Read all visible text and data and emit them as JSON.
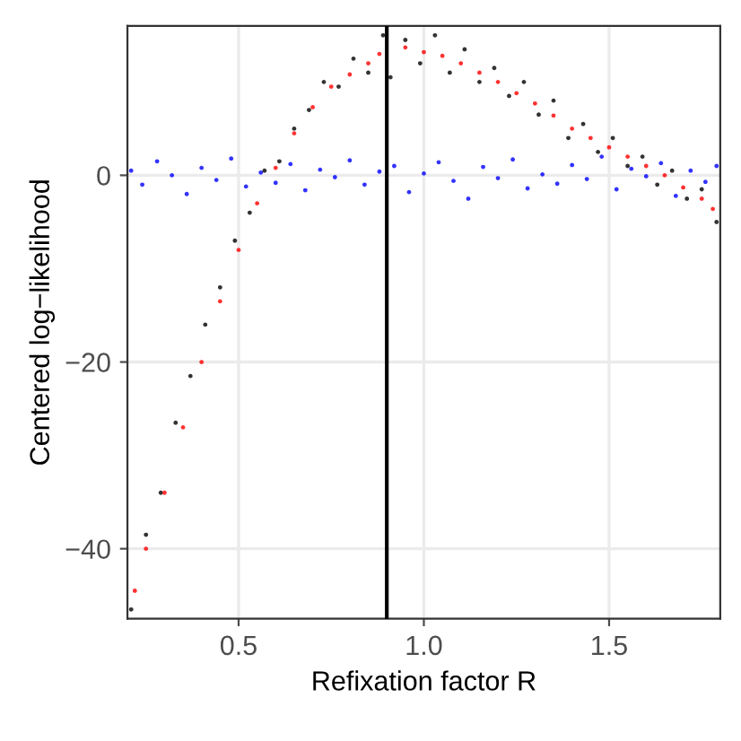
{
  "chart_data": {
    "type": "scatter",
    "xlabel": "Refixation factor R",
    "ylabel": "Centered log−likelihood",
    "xlim": [
      0.2,
      1.8
    ],
    "ylim": [
      -47.5,
      16
    ],
    "xticks": [
      0.5,
      {
        "value": 1.0,
        "label": "1.0"
      },
      1.5
    ],
    "yticks": [
      {
        "value": 0,
        "label": "0"
      },
      {
        "value": -20,
        "label": "−20"
      },
      {
        "value": -40,
        "label": "−40"
      }
    ],
    "grid": true,
    "legend": false,
    "marker": "circle",
    "ref_lines": [
      {
        "axis": "x",
        "value": 0.9
      }
    ],
    "series": [
      {
        "color": "#0000ff",
        "x": [
          0.21,
          0.24,
          0.28,
          0.32,
          0.36,
          0.4,
          0.44,
          0.48,
          0.52,
          0.56,
          0.6,
          0.64,
          0.68,
          0.72,
          0.76,
          0.8,
          0.84,
          0.88,
          0.92,
          0.96,
          1.0,
          1.04,
          1.08,
          1.12,
          1.16,
          1.2,
          1.24,
          1.28,
          1.32,
          1.36,
          1.4,
          1.44,
          1.48,
          1.52,
          1.56,
          1.6,
          1.64,
          1.68,
          1.72,
          1.76,
          1.79
        ],
        "values": [
          0.5,
          -1.0,
          1.5,
          0.0,
          -2.0,
          0.8,
          -0.5,
          1.8,
          -1.2,
          0.3,
          -0.8,
          1.2,
          -1.6,
          0.6,
          -0.2,
          1.6,
          -1.0,
          0.4,
          1.0,
          -1.8,
          0.2,
          1.4,
          -0.6,
          -2.5,
          0.9,
          -0.3,
          1.7,
          -1.4,
          0.1,
          -0.9,
          1.1,
          -0.4,
          2.0,
          -1.5,
          0.7,
          -0.1,
          1.3,
          -2.2,
          0.5,
          -0.7,
          1.0
        ]
      },
      {
        "color": "#000000",
        "x": [
          0.21,
          0.25,
          0.29,
          0.33,
          0.37,
          0.41,
          0.45,
          0.49,
          0.53,
          0.57,
          0.61,
          0.65,
          0.69,
          0.73,
          0.77,
          0.81,
          0.85,
          0.89,
          0.91,
          0.95,
          0.99,
          1.03,
          1.07,
          1.11,
          1.15,
          1.19,
          1.23,
          1.27,
          1.31,
          1.35,
          1.39,
          1.43,
          1.47,
          1.51,
          1.55,
          1.59,
          1.63,
          1.67,
          1.71,
          1.75,
          1.79
        ],
        "values": [
          -46.5,
          -38.5,
          -34.0,
          -26.5,
          -21.5,
          -16.0,
          -12.0,
          -7.0,
          -4.0,
          0.5,
          1.5,
          5.0,
          7.0,
          10.0,
          9.5,
          12.5,
          11.0,
          15.0,
          10.5,
          14.5,
          12.0,
          15.0,
          11.0,
          13.5,
          10.0,
          11.5,
          8.5,
          10.0,
          6.5,
          8.0,
          4.0,
          5.5,
          2.5,
          4.0,
          1.0,
          2.0,
          -1.0,
          0.5,
          -2.5,
          -1.5,
          -5.0
        ]
      },
      {
        "color": "#ff0000",
        "x": [
          0.22,
          0.25,
          0.3,
          0.35,
          0.4,
          0.45,
          0.5,
          0.55,
          0.6,
          0.65,
          0.7,
          0.75,
          0.8,
          0.85,
          0.88,
          0.95,
          1.0,
          1.05,
          1.1,
          1.15,
          1.2,
          1.25,
          1.3,
          1.35,
          1.4,
          1.45,
          1.5,
          1.55,
          1.6,
          1.65,
          1.7,
          1.75,
          1.78
        ],
        "values": [
          -44.5,
          -40.0,
          -34.0,
          -27.0,
          -20.0,
          -13.5,
          -8.0,
          -3.0,
          0.8,
          4.5,
          7.3,
          9.5,
          10.8,
          12.0,
          13.0,
          13.7,
          13.2,
          12.8,
          12.0,
          11.0,
          10.0,
          8.8,
          7.7,
          6.4,
          5.0,
          4.0,
          3.0,
          2.0,
          1.0,
          0.0,
          -1.3,
          -2.5,
          -3.6
        ]
      }
    ]
  }
}
